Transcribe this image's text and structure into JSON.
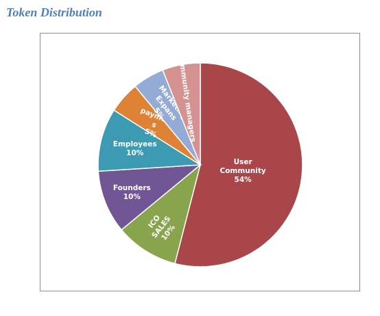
{
  "page": {
    "title": "Token Distribution"
  },
  "chart_data": {
    "type": "pie",
    "title": "",
    "start_angle_deg": 0,
    "direction": "clockwise",
    "slices": [
      {
        "label": "User Community",
        "value": 54,
        "data_label": "54%",
        "color": "#a9464a"
      },
      {
        "label": "ICO SALES",
        "value": 10,
        "data_label": "10%",
        "color": "#88a44c"
      },
      {
        "label": "Founders",
        "value": 10,
        "data_label": "10%",
        "color": "#705694"
      },
      {
        "label": "Employees",
        "value": 10,
        "data_label": "10%",
        "color": "#3c9ab2"
      },
      {
        "label": "payment s",
        "value": 5,
        "data_label": "5%",
        "color": "#de8235"
      },
      {
        "label": "Marketing Expans",
        "value": 5,
        "data_label": "5%",
        "color": "#94abd6"
      },
      {
        "label": "community managers",
        "value": 6,
        "data_label": "6%",
        "color": "#d49391"
      }
    ]
  }
}
